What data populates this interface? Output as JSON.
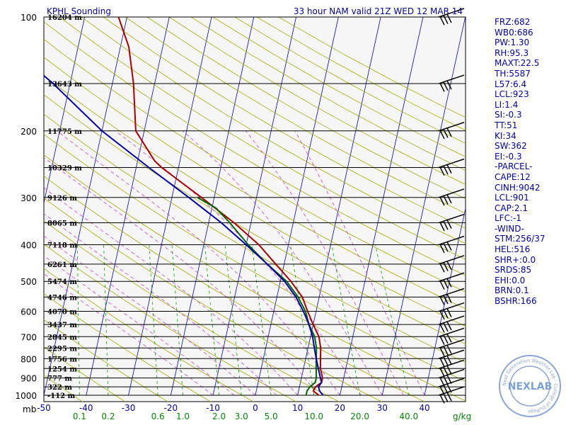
{
  "header": {
    "station_title": "KPHL Sounding",
    "valid_title": "33 hour NAM valid 21Z WED 12 MAR 14"
  },
  "indices": [
    "FRZ:682",
    "WB0:686",
    "PW:1.30",
    "RH:95.3",
    "MAXT:22.5",
    "TH:5587",
    "L57:6.4",
    "LCL:923",
    "LI:1.4",
    "SI:-0.3",
    "TT:51",
    "KI:34",
    "SW:362",
    "EI:-0.3",
    "-PARCEL-",
    "CAPE:12",
    "CINH:9042",
    "LCL:901",
    "CAP:2.1",
    "LFC:-1",
    "-WIND-",
    "STM:256/37",
    "HEL:516",
    "SHR+:0.0",
    "SRDS:85",
    "EHI:0.0",
    "BRN:0.1",
    "BSHR:166"
  ],
  "logo": {
    "text": "NEXLAB",
    "ring_text": "Next Generation Weather Lab · College of DuPage"
  },
  "colors": {
    "temperature": "#aa0000",
    "dewpoint": "#006600",
    "wetbulb": "#0000aa",
    "isotherm": "#0000cc",
    "dry_adiabat": "#aaaa00",
    "moist_adiabat": "#cc44cc",
    "mixing_ratio": "#00aa00",
    "text": "#0000aa"
  },
  "chart_data": {
    "type": "skew-t",
    "pressure_unit_label": "mb",
    "mixing_ratio_unit_label": "g/kg",
    "pressure_levels": [
      100,
      200,
      300,
      400,
      500,
      600,
      700,
      800,
      900,
      1000
    ],
    "pressure_axis_labels": [
      "100",
      "200",
      "300",
      "400",
      "500",
      "600",
      "700",
      "800",
      "900",
      "1000"
    ],
    "temperature_ticks": [
      -50,
      -40,
      -30,
      -20,
      -10,
      0,
      10,
      20,
      30,
      40
    ],
    "temperature_tick_labels": [
      "-50",
      "-40",
      "-30",
      "-20",
      "-10",
      "0",
      "10",
      "20",
      "30",
      "40"
    ],
    "mixing_ratio_values": [
      0.1,
      0.2,
      0.6,
      1.0,
      2.0,
      3.0,
      5.0,
      10.0,
      20.0,
      40.0
    ],
    "mixing_ratio_labels": [
      "0.1",
      "0.2",
      "0.6",
      "1.0",
      "2.0",
      "3.0",
      "5.0",
      "10.0",
      "20.0",
      "40.0"
    ],
    "height_levels": [
      {
        "p": 100,
        "label": "16204 m"
      },
      {
        "p": 150,
        "label": "13643 m"
      },
      {
        "p": 200,
        "label": "11775 m"
      },
      {
        "p": 250,
        "label": "10329 m"
      },
      {
        "p": 300,
        "label": "9126 m"
      },
      {
        "p": 350,
        "label": "8065 m"
      },
      {
        "p": 400,
        "label": "7118 m"
      },
      {
        "p": 450,
        "label": "6261 m"
      },
      {
        "p": 500,
        "label": "5474 m"
      },
      {
        "p": 550,
        "label": "4746 m"
      },
      {
        "p": 600,
        "label": "4070 m"
      },
      {
        "p": 650,
        "label": "3437 m"
      },
      {
        "p": 700,
        "label": "2845 m"
      },
      {
        "p": 750,
        "label": "2295 m"
      },
      {
        "p": 800,
        "label": "1756 m"
      },
      {
        "p": 850,
        "label": "1254 m"
      },
      {
        "p": 900,
        "label": "777 m"
      },
      {
        "p": 950,
        "label": "322 m"
      },
      {
        "p": 1000,
        "label": "-112 m"
      }
    ],
    "series": [
      {
        "key": "temperature",
        "points": [
          [
            1000,
            15
          ],
          [
            975,
            13.5
          ],
          [
            950,
            13.8
          ],
          [
            925,
            15
          ],
          [
            900,
            15
          ],
          [
            850,
            14
          ],
          [
            800,
            13.5
          ],
          [
            750,
            13
          ],
          [
            700,
            12
          ],
          [
            650,
            10
          ],
          [
            600,
            8
          ],
          [
            550,
            6
          ],
          [
            500,
            2.5
          ],
          [
            450,
            -2
          ],
          [
            400,
            -7
          ],
          [
            350,
            -14
          ],
          [
            300,
            -23
          ],
          [
            250,
            -34
          ],
          [
            240,
            -36
          ],
          [
            200,
            -42
          ],
          [
            150,
            -45
          ],
          [
            120,
            -48
          ],
          [
            100,
            -52
          ]
        ]
      },
      {
        "key": "dewpoint",
        "points": [
          [
            1000,
            12
          ],
          [
            975,
            12
          ],
          [
            950,
            12.5
          ],
          [
            925,
            13.5
          ],
          [
            900,
            13.5
          ],
          [
            850,
            13
          ],
          [
            800,
            12.5
          ],
          [
            750,
            12
          ],
          [
            700,
            11
          ],
          [
            650,
            9
          ],
          [
            600,
            7.5
          ],
          [
            550,
            5
          ],
          [
            500,
            1.5
          ],
          [
            450,
            -4
          ],
          [
            400,
            -9.5
          ],
          [
            350,
            -15
          ],
          [
            320,
            -19
          ],
          [
            300,
            -24
          ]
        ]
      },
      {
        "key": "wetbulb",
        "points": [
          [
            1000,
            16
          ],
          [
            975,
            15
          ],
          [
            950,
            14.5
          ],
          [
            925,
            15
          ],
          [
            900,
            14.5
          ],
          [
            850,
            13.5
          ],
          [
            800,
            12.5
          ],
          [
            750,
            11.5
          ],
          [
            700,
            10.5
          ],
          [
            650,
            9
          ],
          [
            600,
            7
          ],
          [
            550,
            4.5
          ],
          [
            500,
            1
          ],
          [
            450,
            -4
          ],
          [
            400,
            -10
          ],
          [
            350,
            -17
          ],
          [
            300,
            -26
          ],
          [
            250,
            -37
          ],
          [
            200,
            -50
          ],
          [
            150,
            -64
          ],
          [
            120,
            -76
          ],
          [
            100,
            -85
          ]
        ]
      }
    ],
    "wind_barb_levels": [
      100,
      150,
      200,
      250,
      300,
      350,
      400,
      450,
      500,
      550,
      600,
      650,
      700,
      750,
      800,
      850,
      900,
      950,
      1000
    ],
    "grid": true
  }
}
